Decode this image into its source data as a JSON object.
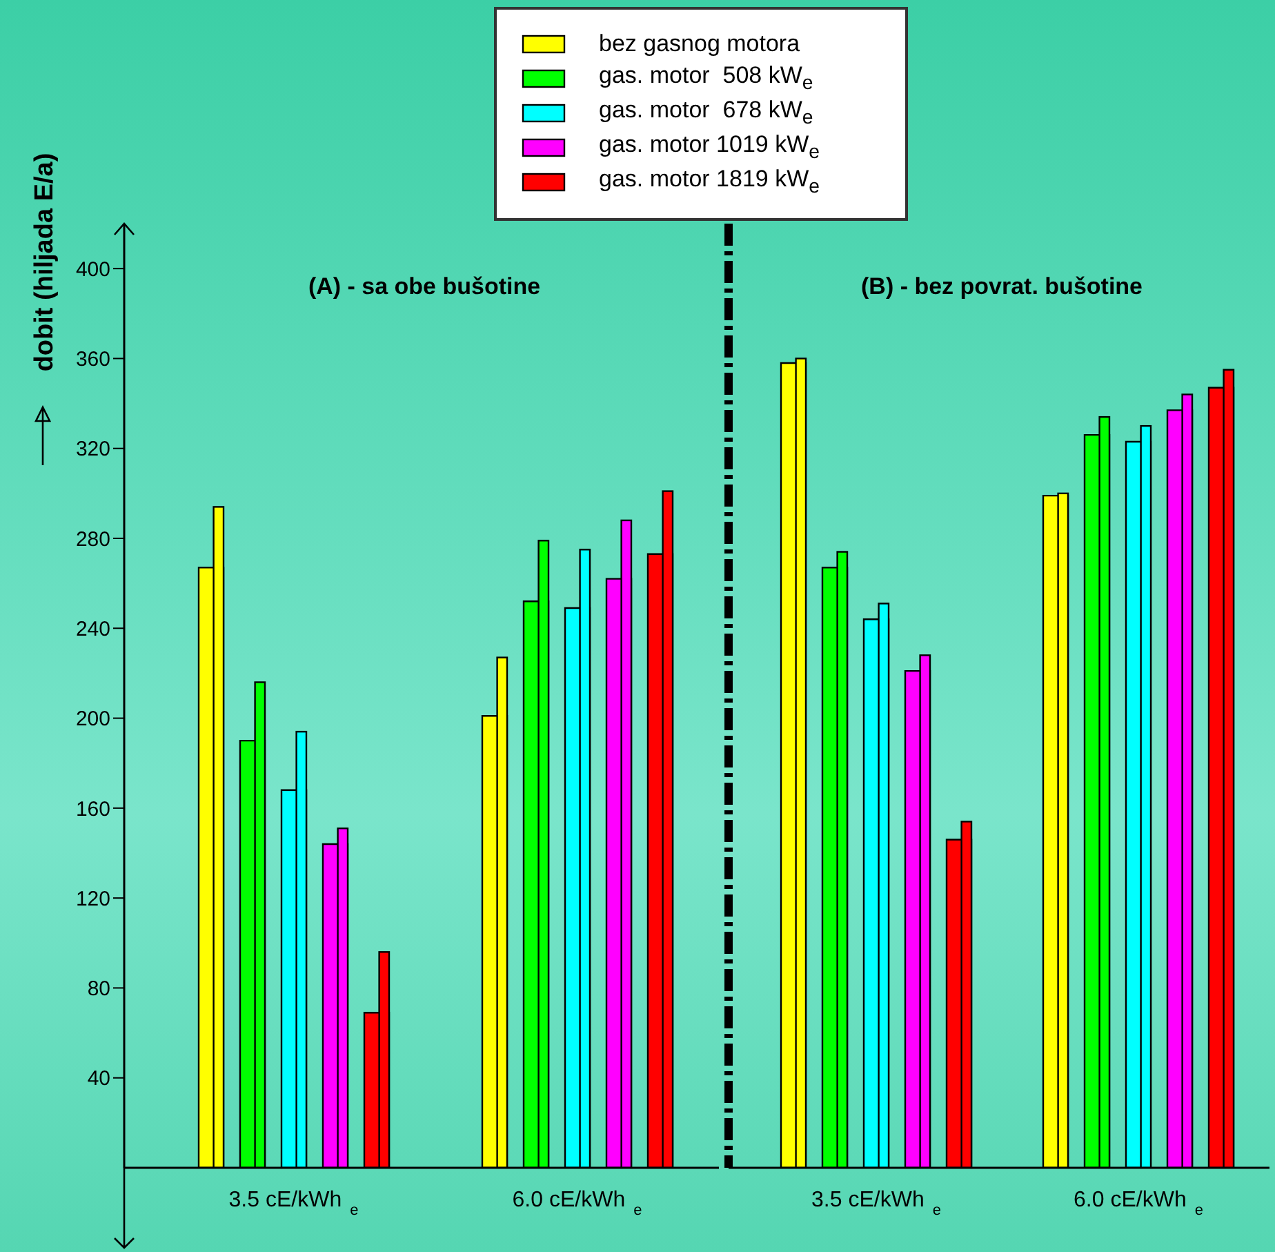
{
  "chart_data": [
    {
      "type": "bar",
      "title": "(A) - sa obe bušotine",
      "ylabel": "dobit (hiljada E/a)",
      "categories": [
        "3.5 cE/kWh$_{e}$",
        "6.0 cE/kWh$_{e}$"
      ],
      "ylim": [
        0,
        420
      ],
      "yticks": [
        40,
        80,
        120,
        160,
        200,
        240,
        280,
        320,
        360,
        400
      ],
      "grid": false,
      "legend": "top",
      "series": [
        {
          "name": "bez gasnog motora",
          "color": "#ffff00",
          "values": [
            267,
            201
          ]
        },
        {
          "color": "#ffff00",
          "values": [
            294,
            227
          ]
        },
        {
          "name": "gas. motor  508 kW$_{e}$",
          "color": "#00ff00",
          "values": [
            190,
            252
          ]
        },
        {
          "color": "#00ff00",
          "values": [
            216,
            279
          ]
        },
        {
          "name": "gas. motor  678 kW$_{e}$",
          "color": "#00ffff",
          "values": [
            168,
            249
          ]
        },
        {
          "color": "#00ffff",
          "values": [
            194,
            275
          ]
        },
        {
          "name": "gas. motor 1019 kW$_{e}$",
          "color": "#ff00ff",
          "values": [
            144,
            262
          ]
        },
        {
          "color": "#ff00ff",
          "values": [
            151,
            288
          ]
        },
        {
          "name": "gas. motor 1819 kW$_{e}$",
          "color": "#ff0000",
          "values": [
            69,
            273
          ]
        },
        {
          "color": "#ff0000",
          "values": [
            96,
            301
          ]
        }
      ]
    },
    {
      "type": "bar",
      "title": "(B) - bez povrat. bušotine",
      "categories": [
        "3.5 cE/kWh$_{e}$",
        "6.0 cE/kWh$_{e}$"
      ],
      "ylim": [
        0,
        420
      ],
      "tick_labels": "x",
      "grid": false,
      "series": [
        {
          "color": "#ffff00",
          "values": [
            358,
            299
          ]
        },
        {
          "color": "#ffff00",
          "values": [
            360,
            300
          ]
        },
        {
          "color": "#00ff00",
          "values": [
            267,
            326
          ]
        },
        {
          "color": "#00ff00",
          "values": [
            274,
            334
          ]
        },
        {
          "color": "#00ffff",
          "values": [
            244,
            323
          ]
        },
        {
          "color": "#00ffff",
          "values": [
            251,
            330
          ]
        },
        {
          "color": "#ff00ff",
          "values": [
            221,
            337
          ]
        },
        {
          "color": "#ff00ff",
          "values": [
            228,
            344
          ]
        },
        {
          "color": "#ff0000",
          "values": [
            146,
            347
          ]
        },
        {
          "color": "#ff0000",
          "values": [
            154,
            355
          ]
        }
      ]
    }
  ]
}
